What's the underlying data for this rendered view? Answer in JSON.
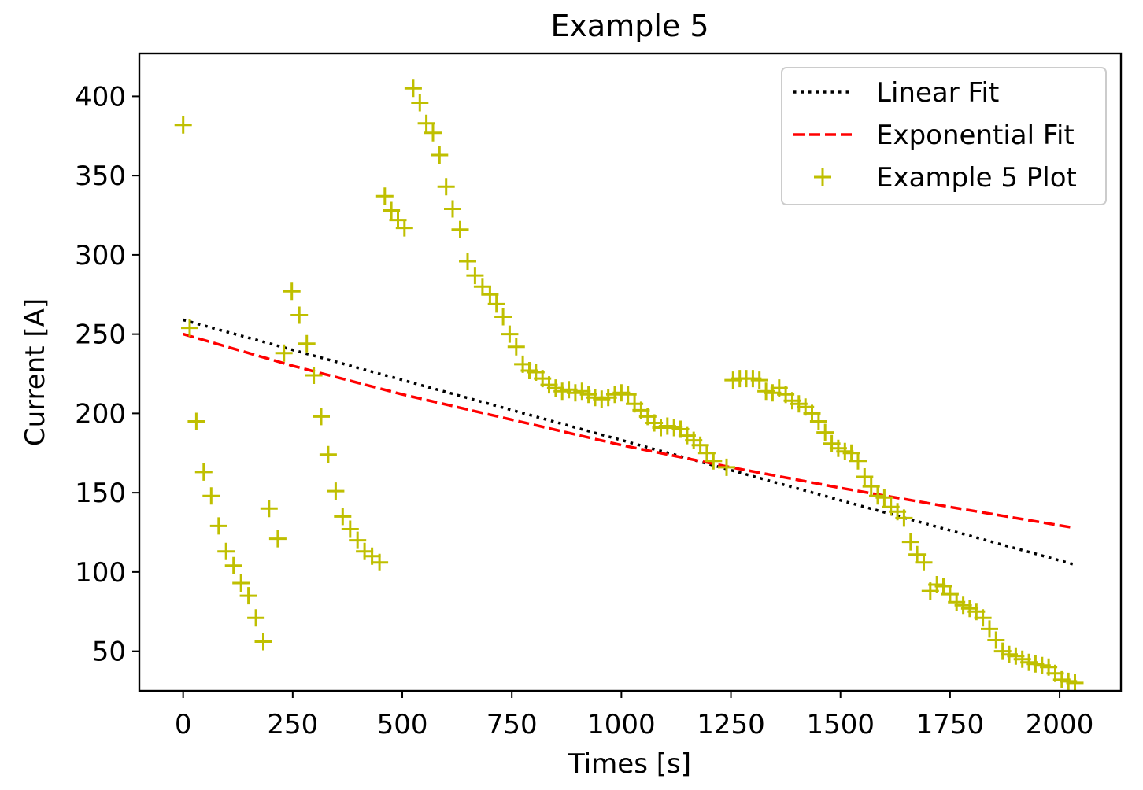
{
  "chart_data": {
    "type": "scatter",
    "title": "Example 5",
    "xlabel": "Times [s]",
    "ylabel": "Current [A]",
    "xlim": [
      -100,
      2140
    ],
    "ylim": [
      25,
      427
    ],
    "xticks": [
      0,
      250,
      500,
      750,
      1000,
      1250,
      1500,
      1750,
      2000
    ],
    "yticks": [
      50,
      100,
      150,
      200,
      250,
      300,
      350,
      400
    ],
    "grid": false,
    "legend": "upper right",
    "colors": {
      "linear": "#000000",
      "exponential": "#ff0000",
      "points": "#bfbf00"
    },
    "series": [
      {
        "name": "Linear Fit",
        "type": "line",
        "style": "dotted",
        "x": [
          0,
          2030
        ],
        "y": [
          259,
          105
        ]
      },
      {
        "name": "Exponential Fit",
        "type": "line",
        "style": "dashed",
        "x": [
          0,
          250,
          500,
          750,
          1000,
          1250,
          1500,
          1750,
          2030
        ],
        "y": [
          250,
          230,
          212,
          196,
          180,
          166,
          153,
          141,
          128
        ]
      },
      {
        "name": "Example 5 Plot",
        "type": "scatter",
        "marker": "plus",
        "x": [
          0,
          15,
          30,
          47,
          64,
          81,
          98,
          115,
          132,
          149,
          166,
          183,
          196,
          216,
          230,
          248,
          265,
          282,
          298,
          315,
          331,
          348,
          364,
          381,
          398,
          414,
          431,
          448,
          460,
          475,
          490,
          505,
          525,
          540,
          555,
          570,
          585,
          600,
          615,
          632,
          649,
          666,
          683,
          700,
          715,
          730,
          745,
          760,
          775,
          790,
          805,
          820,
          835,
          850,
          865,
          880,
          895,
          910,
          925,
          940,
          955,
          970,
          985,
          1000,
          1015,
          1030,
          1045,
          1060,
          1075,
          1090,
          1105,
          1120,
          1135,
          1150,
          1165,
          1180,
          1195,
          1210,
          1240,
          1255,
          1270,
          1285,
          1300,
          1315,
          1330,
          1345,
          1360,
          1375,
          1390,
          1405,
          1420,
          1435,
          1450,
          1465,
          1480,
          1495,
          1510,
          1525,
          1540,
          1555,
          1570,
          1585,
          1600,
          1615,
          1630,
          1645,
          1660,
          1675,
          1690,
          1705,
          1720,
          1735,
          1750,
          1765,
          1780,
          1795,
          1810,
          1825,
          1840,
          1855,
          1870,
          1885,
          1900,
          1915,
          1930,
          1945,
          1960,
          1975,
          1990,
          2005,
          2020,
          2035
        ],
        "y": [
          382,
          254,
          195,
          163,
          148,
          129,
          113,
          104,
          93,
          85,
          71,
          56,
          140,
          121,
          238,
          277,
          262,
          244,
          224,
          198,
          174,
          151,
          135,
          127,
          120,
          113,
          110,
          106,
          337,
          328,
          322,
          317,
          405,
          396,
          383,
          377,
          363,
          343,
          329,
          316,
          296,
          287,
          280,
          275,
          269,
          261,
          250,
          242,
          231,
          227,
          226,
          222,
          218,
          216,
          214,
          215,
          213,
          214,
          212,
          210,
          209,
          210,
          212,
          213,
          212,
          206,
          202,
          198,
          194,
          191,
          192,
          191,
          190,
          186,
          183,
          180,
          175,
          170,
          166,
          221,
          222,
          222,
          222,
          221,
          214,
          213,
          216,
          212,
          208,
          206,
          204,
          200,
          195,
          188,
          181,
          178,
          176,
          175,
          170,
          160,
          154,
          148,
          147,
          141,
          138,
          134,
          119,
          111,
          106,
          88,
          92,
          91,
          86,
          81,
          79,
          77,
          75,
          71,
          64,
          57,
          50,
          48,
          47,
          45,
          43,
          42,
          41,
          40,
          36,
          32,
          31,
          30
        ]
      }
    ]
  }
}
